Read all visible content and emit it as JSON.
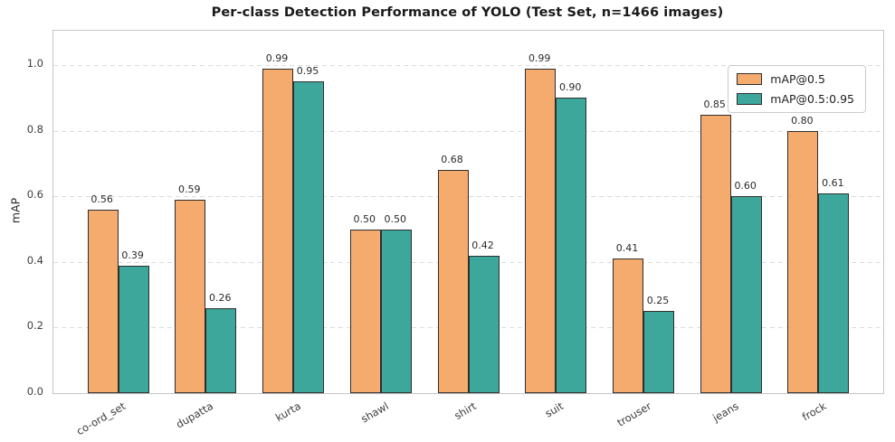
{
  "chart_data": {
    "type": "bar",
    "title": "Per-class Detection Performance of YOLO (Test Set, n=1466 images)",
    "xlabel": "",
    "ylabel": "mAP",
    "categories": [
      "co-ord_set",
      "dupatta",
      "kurta",
      "shawl",
      "shirt",
      "suit",
      "trouser",
      "jeans",
      "frock"
    ],
    "series": [
      {
        "name": "mAP@0.5",
        "color": "#f5aa6e",
        "values": [
          0.56,
          0.59,
          0.99,
          0.5,
          0.68,
          0.99,
          0.41,
          0.85,
          0.8
        ],
        "bar_labels": [
          "0.56",
          "0.59",
          "0.99",
          "0.50",
          "0.68",
          "0.99",
          "0.41",
          "0.85",
          "0.80"
        ]
      },
      {
        "name": "mAP@0.5:0.95",
        "color": "#3ca79a",
        "values": [
          0.39,
          0.26,
          0.95,
          0.5,
          0.42,
          0.9,
          0.25,
          0.6,
          0.61
        ],
        "bar_labels": [
          "0.39",
          "0.26",
          "0.95",
          "0.50",
          "0.42",
          "0.90",
          "0.25",
          "0.60",
          "0.61"
        ]
      }
    ],
    "ylim": [
      0,
      1.105
    ],
    "yticks": [
      0.0,
      0.2,
      0.4,
      0.6,
      0.8,
      1.0
    ],
    "ytick_labels": [
      "0.0",
      "0.2",
      "0.4",
      "0.6",
      "0.8",
      "1.0"
    ],
    "grid": true,
    "grid_style": "dashed",
    "legend_position": "upper right",
    "bar_edge_color": "#2e2e2e",
    "background_color": "#ffffff"
  }
}
